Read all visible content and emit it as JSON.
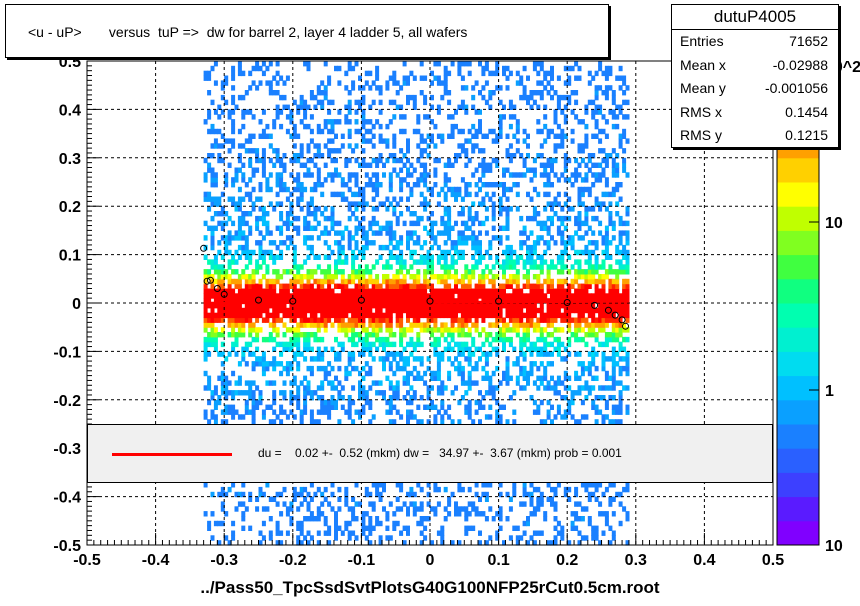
{
  "title": "<u - uP>       versus  tuP =>  dw for barrel 2, layer 4 ladder 5, all wafers",
  "stats": {
    "name": "dutuP4005",
    "rows": [
      {
        "label": "Entries",
        "value": "71652"
      },
      {
        "label": "Mean x",
        "value": "-0.02988"
      },
      {
        "label": "Mean y",
        "value": "-0.001056"
      },
      {
        "label": "RMS x",
        "value": "0.1454"
      },
      {
        "label": "RMS y",
        "value": "0.1215"
      }
    ]
  },
  "legend": {
    "text": "du =    0.02 +-  0.52 (mkm) dw =   34.97 +-  3.67 (mkm) prob = 0.001"
  },
  "chart_data": {
    "type": "heatmap",
    "xlabel": "../Pass50_TpcSsdSvtPlotsG40G100NFP25rCut0.5cm.root",
    "xlim": [
      -0.5,
      0.5
    ],
    "ylim": [
      -0.5,
      0.5
    ],
    "x_ticks": [
      "-0.5",
      "-0.4",
      "-0.3",
      "-0.2",
      "-0.1",
      "0",
      "0.1",
      "0.2",
      "0.3",
      "0.4",
      "0.5"
    ],
    "y_ticks": [
      "-0.5",
      "-0.4",
      "-0.3",
      "-0.2",
      "-0.1",
      "0",
      "0.1",
      "0.2",
      "0.3",
      "0.4",
      "0.5"
    ],
    "z_scale": "log",
    "z_ticks": [
      "1",
      "10",
      "10^2"
    ],
    "grid": true,
    "palette": [
      "#8000ff",
      "#5a1bff",
      "#3d40ff",
      "#2a60ff",
      "#1a80ff",
      "#0aa0ff",
      "#00c0ff",
      "#00dcf0",
      "#00f0d0",
      "#00ffb0",
      "#10ff80",
      "#40ff40",
      "#80ff20",
      "#c0ff00",
      "#ffff00",
      "#ffd000",
      "#ffa000",
      "#ff6000",
      "#ff2000",
      "#ff0000"
    ],
    "data_x_range": [
      -0.33,
      0.29
    ],
    "fit_line": {
      "x": [
        -0.33,
        0.29
      ],
      "y": [
        0.0,
        0.003
      ],
      "color": "#ff0000"
    },
    "profile_points": [
      {
        "x": -0.33,
        "y": 0.113
      },
      {
        "x": -0.325,
        "y": 0.045
      },
      {
        "x": -0.32,
        "y": 0.047
      },
      {
        "x": -0.31,
        "y": 0.03
      },
      {
        "x": -0.3,
        "y": 0.018
      },
      {
        "x": -0.25,
        "y": 0.006
      },
      {
        "x": -0.2,
        "y": 0.004
      },
      {
        "x": -0.1,
        "y": 0.006
      },
      {
        "x": 0.0,
        "y": 0.004
      },
      {
        "x": 0.1,
        "y": 0.004
      },
      {
        "x": 0.2,
        "y": 0.001
      },
      {
        "x": 0.24,
        "y": -0.005
      },
      {
        "x": 0.26,
        "y": -0.015
      },
      {
        "x": 0.27,
        "y": -0.025
      },
      {
        "x": 0.28,
        "y": -0.035
      },
      {
        "x": 0.285,
        "y": -0.048
      }
    ]
  }
}
